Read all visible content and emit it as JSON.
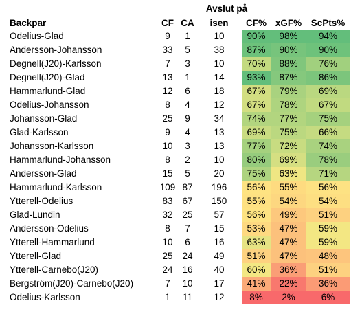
{
  "header": {
    "top_label": "Avslut på",
    "columns": [
      "Backpar",
      "CF",
      "CA",
      "isen",
      "CF%",
      "xGF%",
      "ScPts%"
    ]
  },
  "rows": [
    {
      "pair": "Odelius-Glad",
      "cf": "9",
      "ca": "1",
      "total": "10",
      "cf_pct": "90%",
      "xgf_pct": "98%",
      "scpts_pct": "94%",
      "colors": [
        "#63be7b",
        "#63be7b",
        "#63be7b"
      ]
    },
    {
      "pair": "Andersson-Johansson",
      "cf": "33",
      "ca": "5",
      "total": "38",
      "cf_pct": "87%",
      "xgf_pct": "90%",
      "scpts_pct": "90%",
      "colors": [
        "#6dc27b",
        "#77c47c",
        "#6ec27b"
      ]
    },
    {
      "pair": "Degnell(J20)-Karlsson",
      "cf": "7",
      "ca": "3",
      "total": "10",
      "cf_pct": "70%",
      "xgf_pct": "88%",
      "scpts_pct": "76%",
      "colors": [
        "#c3da80",
        "#80c67c",
        "#a1d07e"
      ]
    },
    {
      "pair": "Degnell(J20)-Glad",
      "cf": "13",
      "ca": "1",
      "total": "14",
      "cf_pct": "93%",
      "xgf_pct": "87%",
      "scpts_pct": "86%",
      "colors": [
        "#63be7b",
        "#85c87d",
        "#7cc57c"
      ]
    },
    {
      "pair": "Hammarlund-Glad",
      "cf": "12",
      "ca": "6",
      "total": "18",
      "cf_pct": "67%",
      "xgf_pct": "79%",
      "scpts_pct": "69%",
      "colors": [
        "#d2de81",
        "#a9d27f",
        "#bad880"
      ]
    },
    {
      "pair": "Odelius-Johansson",
      "cf": "8",
      "ca": "4",
      "total": "12",
      "cf_pct": "67%",
      "xgf_pct": "78%",
      "scpts_pct": "67%",
      "colors": [
        "#d2de81",
        "#aed47f",
        "#c1da80"
      ]
    },
    {
      "pair": "Johansson-Glad",
      "cf": "25",
      "ca": "9",
      "total": "34",
      "cf_pct": "74%",
      "xgf_pct": "77%",
      "scpts_pct": "75%",
      "colors": [
        "#b2d57f",
        "#b2d57f",
        "#a5d17e"
      ]
    },
    {
      "pair": "Glad-Karlsson",
      "cf": "9",
      "ca": "4",
      "total": "13",
      "cf_pct": "69%",
      "xgf_pct": "75%",
      "scpts_pct": "66%",
      "colors": [
        "#c9dc81",
        "#bbd880",
        "#c5db81"
      ]
    },
    {
      "pair": "Johansson-Karlsson",
      "cf": "10",
      "ca": "3",
      "total": "13",
      "cf_pct": "77%",
      "xgf_pct": "72%",
      "scpts_pct": "74%",
      "colors": [
        "#a5d17e",
        "#c8dc81",
        "#a9d27f"
      ]
    },
    {
      "pair": "Hammarlund-Johansson",
      "cf": "8",
      "ca": "2",
      "total": "10",
      "cf_pct": "80%",
      "xgf_pct": "69%",
      "scpts_pct": "78%",
      "colors": [
        "#96cc7d",
        "#d5df82",
        "#9acd7e"
      ]
    },
    {
      "pair": "Andersson-Glad",
      "cf": "15",
      "ca": "5",
      "total": "20",
      "cf_pct": "75%",
      "xgf_pct": "63%",
      "scpts_pct": "71%",
      "colors": [
        "#add37f",
        "#efe683",
        "#b6d680"
      ]
    },
    {
      "pair": "Hammarlund-Karlsson",
      "cf": "109",
      "ca": "87",
      "total": "196",
      "cf_pct": "56%",
      "xgf_pct": "55%",
      "scpts_pct": "56%",
      "colors": [
        "#fee382",
        "#fedb80",
        "#fde283"
      ]
    },
    {
      "pair": "Ytterell-Odelius",
      "cf": "83",
      "ca": "67",
      "total": "150",
      "cf_pct": "55%",
      "xgf_pct": "54%",
      "scpts_pct": "54%",
      "colors": [
        "#fee182",
        "#fdd780",
        "#fddf82"
      ]
    },
    {
      "pair": "Glad-Lundin",
      "cf": "32",
      "ca": "25",
      "total": "57",
      "cf_pct": "56%",
      "xgf_pct": "49%",
      "scpts_pct": "51%",
      "colors": [
        "#fee382",
        "#fdc87d",
        "#fdd180"
      ]
    },
    {
      "pair": "Andersson-Odelius",
      "cf": "8",
      "ca": "7",
      "total": "15",
      "cf_pct": "53%",
      "xgf_pct": "47%",
      "scpts_pct": "59%",
      "colors": [
        "#fed981",
        "#fcc17c",
        "#f3e783"
      ]
    },
    {
      "pair": "Ytterell-Hammarlund",
      "cf": "10",
      "ca": "6",
      "total": "16",
      "cf_pct": "63%",
      "xgf_pct": "47%",
      "scpts_pct": "59%",
      "colors": [
        "#e6e383",
        "#fcc17c",
        "#f3e783"
      ]
    },
    {
      "pair": "Ytterell-Glad",
      "cf": "25",
      "ca": "24",
      "total": "49",
      "cf_pct": "51%",
      "xgf_pct": "47%",
      "scpts_pct": "48%",
      "colors": [
        "#fdd280",
        "#fcc17c",
        "#fdc57d"
      ]
    },
    {
      "pair": "Ytterell-Carnebo(J20)",
      "cf": "24",
      "ca": "16",
      "total": "40",
      "cf_pct": "60%",
      "xgf_pct": "36%",
      "scpts_pct": "51%",
      "colors": [
        "#f3e783",
        "#fa9e76",
        "#fdd180"
      ]
    },
    {
      "pair": "Bergström(J20)-Carnebo(J20)",
      "cf": "7",
      "ca": "10",
      "total": "17",
      "cf_pct": "41%",
      "xgf_pct": "22%",
      "scpts_pct": "36%",
      "colors": [
        "#fbaa78",
        "#f8786e",
        "#fb9b75"
      ]
    },
    {
      "pair": "Odelius-Karlsson",
      "cf": "1",
      "ca": "11",
      "total": "12",
      "cf_pct": "8%",
      "xgf_pct": "2%",
      "scpts_pct": "6%",
      "colors": [
        "#f8696b",
        "#f8696b",
        "#f8696b"
      ]
    }
  ]
}
